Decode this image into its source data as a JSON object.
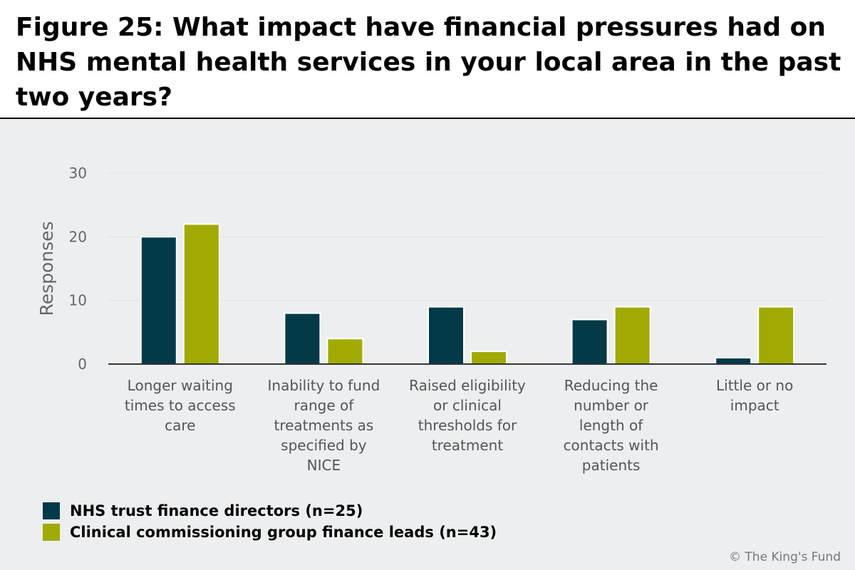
{
  "title": "Figure 25: What impact have financial pressures had on NHS mental health services in your local area in the past two years?",
  "copyright": "© The King's Fund",
  "colors": {
    "series1": "#023a48",
    "series2": "#a0aa00",
    "background": "#eceef0",
    "gridline": "#dfe1e3",
    "axis": "#333333"
  },
  "chart_data": {
    "type": "bar",
    "title": "Figure 25: What impact have financial pressures had on NHS mental health services in your local area in the past two years?",
    "xlabel": "",
    "ylabel": "Responses",
    "ylim": [
      0,
      30
    ],
    "yticks": [
      0,
      10,
      20,
      30
    ],
    "grid": true,
    "legend_position": "bottom-left",
    "categories": [
      "Longer waiting times to access care",
      "Inability to fund range of treatments as specified by NICE",
      "Raised eligibility or clinical thresholds for treatment",
      "Reducing the number or length of contacts with patients",
      "Little or no impact"
    ],
    "category_lines": [
      [
        "Longer waiting",
        "times to access",
        "care"
      ],
      [
        "Inability to fund",
        "range of",
        "treatments as",
        "specified by",
        "NICE"
      ],
      [
        "Raised eligibility",
        "or clinical",
        "thresholds for",
        "treatment"
      ],
      [
        "Reducing the",
        "number or",
        "length of",
        "contacts with",
        "patients"
      ],
      [
        "Little or no",
        "impact"
      ]
    ],
    "series": [
      {
        "name": "NHS trust finance directors (n=25)",
        "values": [
          20,
          8,
          9,
          7,
          1
        ]
      },
      {
        "name": "Clinical commissioning group finance leads (n=43)",
        "values": [
          22,
          4,
          2,
          9,
          9
        ]
      }
    ]
  }
}
